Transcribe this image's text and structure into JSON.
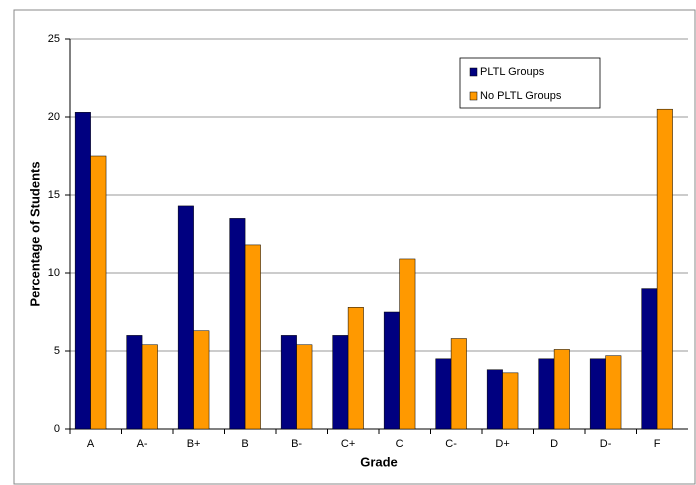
{
  "chart_data": {
    "type": "bar",
    "x_label": "Grade",
    "y_label": "Percentage of Students",
    "categories": [
      "A",
      "A-",
      "B+",
      "B",
      "B-",
      "C+",
      "C",
      "C-",
      "D+",
      "D",
      "D-",
      "F"
    ],
    "series": [
      {
        "name": "PLTL Groups",
        "color": "#000080",
        "values": [
          20.3,
          6,
          14.3,
          13.5,
          6,
          6,
          7.5,
          4.5,
          3.8,
          4.5,
          4.5,
          9
        ]
      },
      {
        "name": "No PLTL Groups",
        "color": "#ff9900",
        "values": [
          17.5,
          5.4,
          6.3,
          11.8,
          5.4,
          7.8,
          10.9,
          5.8,
          3.6,
          5.1,
          4.7,
          20.5
        ]
      }
    ],
    "ylim": [
      0,
      25
    ],
    "yticks": [
      0,
      5,
      10,
      15,
      20,
      25
    ],
    "grid": true,
    "legend": "top-right"
  }
}
